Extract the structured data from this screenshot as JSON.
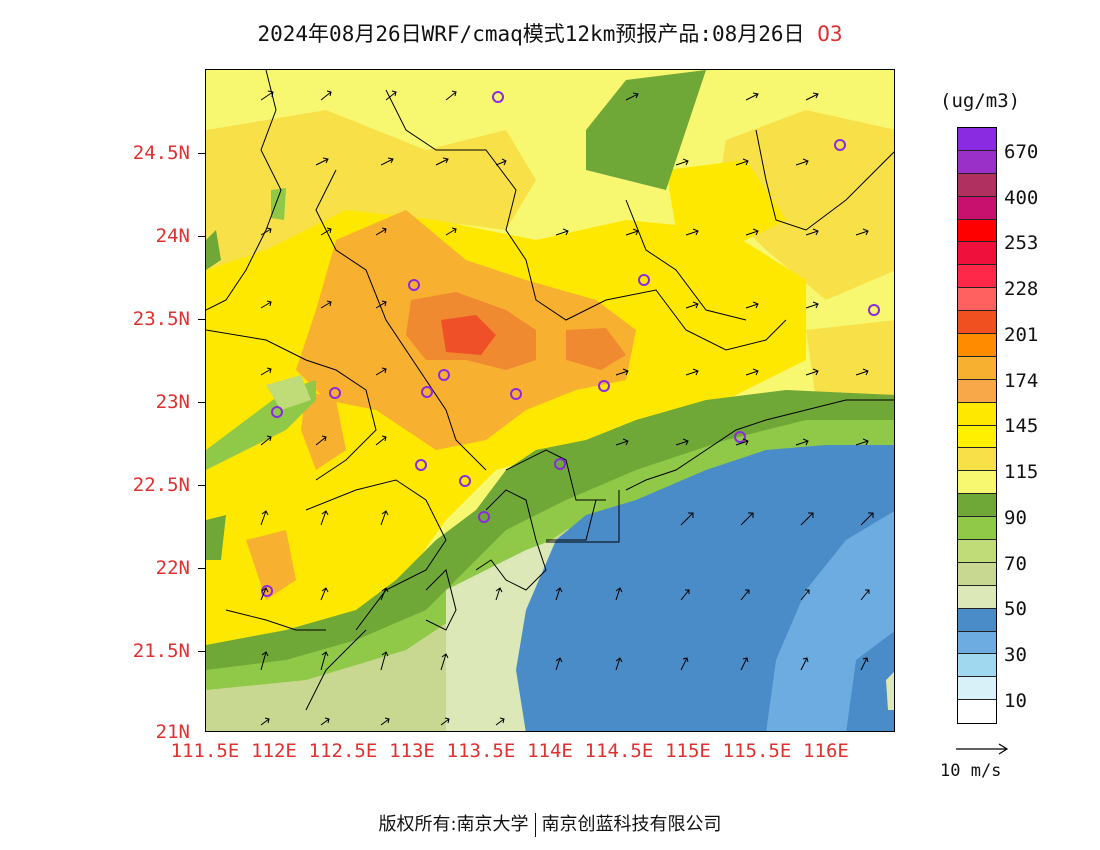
{
  "title": {
    "main": "2024年08月26日WRF/cmaq模式12km预报产品:08月26日",
    "species": "O3"
  },
  "unit": "(ug/m3)",
  "lat_labels": [
    "24.5N",
    "24N",
    "23.5N",
    "23N",
    "22.5N",
    "22N",
    "21.5N",
    "21N"
  ],
  "lon_labels": [
    "111.5E",
    "112E",
    "112.5E",
    "113E",
    "113.5E",
    "114E",
    "114.5E",
    "115E",
    "115.5E",
    "116E"
  ],
  "legend": {
    "labels": [
      "670",
      "400",
      "253",
      "228",
      "201",
      "174",
      "145",
      "115",
      "90",
      "70",
      "50",
      "30",
      "10"
    ],
    "colors": [
      "#8a2be2",
      "#9b30c8",
      "#b03060",
      "#c8106e",
      "#ff0000",
      "#f0103c",
      "#ff6060",
      "#f05020",
      "#ff8c00",
      "#f8b030",
      "#f8a848",
      "#ffe800",
      "#fff000",
      "#f8e048",
      "#f8f870",
      "#70a838",
      "#90c848",
      "#c0dc78",
      "#c8d890",
      "#dce8b8",
      "#4a8cc8",
      "#6cace0",
      "#a0d8f0",
      "#d8f0f8",
      "#ffffff"
    ]
  },
  "wind_reference": "10 m/s",
  "footer": {
    "left": "版权所有:南京大学",
    "right": "南京创蓝科技有限公司"
  },
  "icons": {
    "station_marker": "circle-marker-icon",
    "wind_vector": "arrow-icon"
  }
}
